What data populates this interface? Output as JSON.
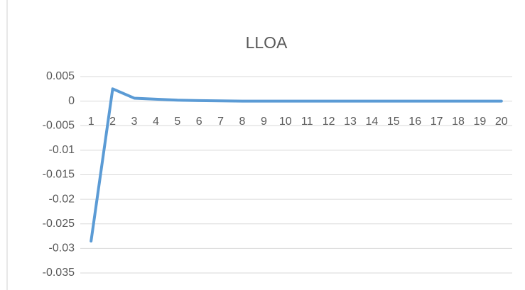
{
  "chart_data": {
    "type": "line",
    "title": "LLOA",
    "categories": [
      "1",
      "2",
      "3",
      "4",
      "5",
      "6",
      "7",
      "8",
      "9",
      "10",
      "11",
      "12",
      "13",
      "14",
      "15",
      "16",
      "17",
      "18",
      "19",
      "20"
    ],
    "values": [
      -0.0285,
      0.0025,
      0.0006,
      0.0004,
      0.0002,
      0.0001,
      5e-05,
      0,
      0,
      0,
      0,
      0,
      0,
      0,
      0,
      0,
      0,
      0,
      0,
      0
    ],
    "color": "#5b9bd5",
    "ylim": [
      -0.035,
      0.005
    ],
    "yticks": [
      0.005,
      0,
      -0.005,
      -0.01,
      -0.015,
      -0.02,
      -0.025,
      -0.03,
      -0.035
    ],
    "grid": true
  }
}
